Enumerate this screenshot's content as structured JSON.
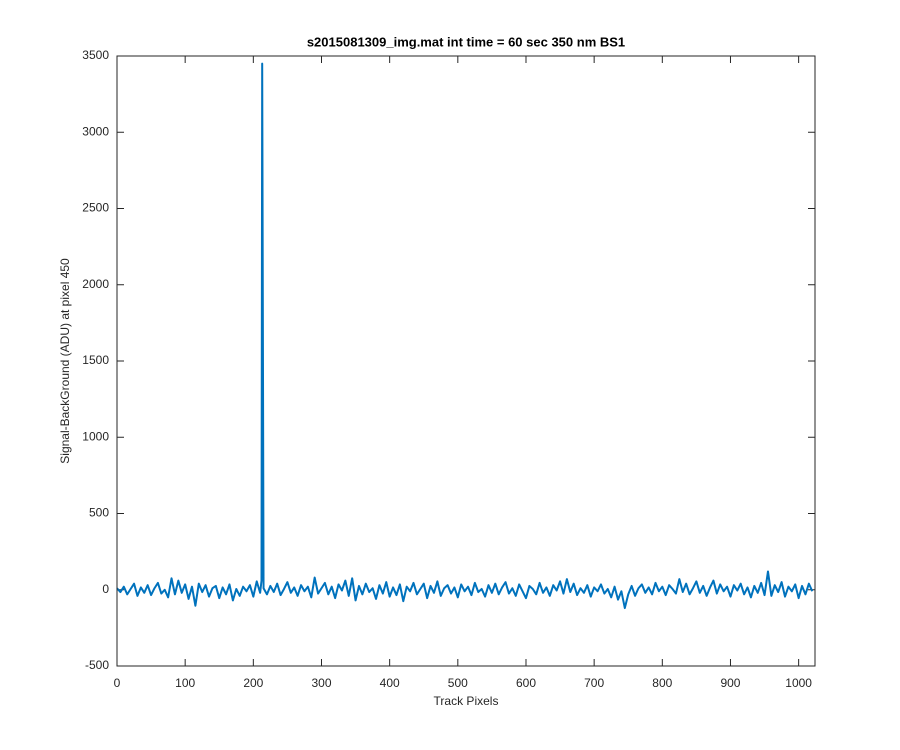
{
  "chart_data": {
    "type": "line",
    "title": "s2015081309_img.mat int time = 60 sec  350 nm BS1",
    "x_label": "Track Pixels",
    "y_label": "Signal-BackGround (ADU) at pixel 450",
    "color": "#0072bd",
    "xlim": [
      0,
      1024
    ],
    "ylim": [
      -500,
      3500
    ],
    "xticks": [
      0,
      100,
      200,
      300,
      400,
      500,
      600,
      700,
      800,
      900,
      1000
    ],
    "yticks": [
      -500,
      0,
      500,
      1000,
      1500,
      2000,
      2500,
      3000,
      3500
    ],
    "x": [
      0,
      5,
      10,
      15,
      20,
      25,
      30,
      35,
      40,
      45,
      50,
      55,
      60,
      65,
      70,
      75,
      80,
      85,
      90,
      95,
      100,
      105,
      110,
      115,
      120,
      125,
      130,
      135,
      140,
      145,
      150,
      155,
      160,
      165,
      170,
      175,
      180,
      185,
      190,
      195,
      200,
      205,
      210,
      212,
      213,
      215,
      220,
      225,
      230,
      235,
      240,
      245,
      250,
      255,
      260,
      265,
      270,
      275,
      280,
      285,
      290,
      295,
      300,
      305,
      310,
      315,
      320,
      325,
      330,
      335,
      340,
      345,
      350,
      355,
      360,
      365,
      370,
      375,
      380,
      385,
      390,
      395,
      400,
      405,
      410,
      415,
      420,
      425,
      430,
      435,
      440,
      445,
      450,
      455,
      460,
      465,
      470,
      475,
      480,
      485,
      490,
      495,
      500,
      505,
      510,
      515,
      520,
      525,
      530,
      535,
      540,
      545,
      550,
      555,
      560,
      565,
      570,
      575,
      580,
      585,
      590,
      595,
      600,
      605,
      610,
      615,
      620,
      625,
      630,
      635,
      640,
      645,
      650,
      655,
      660,
      665,
      670,
      675,
      680,
      685,
      690,
      695,
      700,
      705,
      710,
      715,
      720,
      725,
      730,
      735,
      740,
      745,
      750,
      755,
      760,
      765,
      770,
      775,
      780,
      785,
      790,
      795,
      800,
      805,
      810,
      815,
      820,
      825,
      830,
      835,
      840,
      845,
      850,
      855,
      860,
      865,
      870,
      875,
      880,
      885,
      890,
      895,
      900,
      905,
      910,
      915,
      920,
      925,
      930,
      935,
      940,
      945,
      950,
      955,
      960,
      965,
      970,
      975,
      980,
      985,
      990,
      995,
      1000,
      1005,
      1010,
      1015,
      1020
    ],
    "values": [
      10,
      -15,
      20,
      -30,
      5,
      40,
      -40,
      15,
      -20,
      30,
      -35,
      10,
      45,
      -25,
      0,
      -50,
      75,
      -30,
      60,
      -20,
      35,
      -60,
      20,
      -105,
      40,
      -15,
      30,
      -45,
      10,
      25,
      -55,
      15,
      -30,
      35,
      -70,
      5,
      -40,
      20,
      -10,
      30,
      -45,
      55,
      -20,
      60,
      3450,
      10,
      -30,
      25,
      -15,
      40,
      -35,
      5,
      50,
      -20,
      15,
      -40,
      30,
      -10,
      20,
      -50,
      80,
      -25,
      10,
      45,
      -30,
      20,
      -55,
      35,
      -5,
      60,
      -40,
      75,
      -70,
      25,
      -30,
      40,
      -15,
      10,
      -60,
      30,
      -25,
      50,
      -45,
      15,
      -35,
      35,
      -75,
      20,
      -10,
      45,
      -30,
      5,
      40,
      -55,
      25,
      -20,
      55,
      -40,
      10,
      30,
      -25,
      15,
      -50,
      35,
      -10,
      20,
      -35,
      45,
      -15,
      5,
      -45,
      30,
      -20,
      40,
      -30,
      15,
      50,
      -25,
      10,
      -40,
      35,
      -10,
      -55,
      25,
      5,
      -30,
      45,
      -20,
      15,
      -40,
      30,
      -5,
      55,
      -25,
      70,
      -15,
      40,
      -35,
      10,
      -20,
      30,
      -45,
      15,
      -10,
      35,
      -25,
      5,
      -50,
      20,
      -65,
      -10,
      -120,
      -30,
      25,
      -40,
      10,
      35,
      -20,
      15,
      -30,
      45,
      -10,
      20,
      -35,
      30,
      5,
      -25,
      70,
      -15,
      40,
      -30,
      10,
      55,
      -20,
      25,
      -40,
      15,
      60,
      -25,
      35,
      -10,
      20,
      -45,
      30,
      -5,
      40,
      -30,
      15,
      -50,
      25,
      -20,
      45,
      -35,
      120,
      -40,
      30,
      -15,
      50,
      -45,
      20,
      -10,
      35,
      -55,
      25,
      -30,
      40,
      -10
    ]
  }
}
